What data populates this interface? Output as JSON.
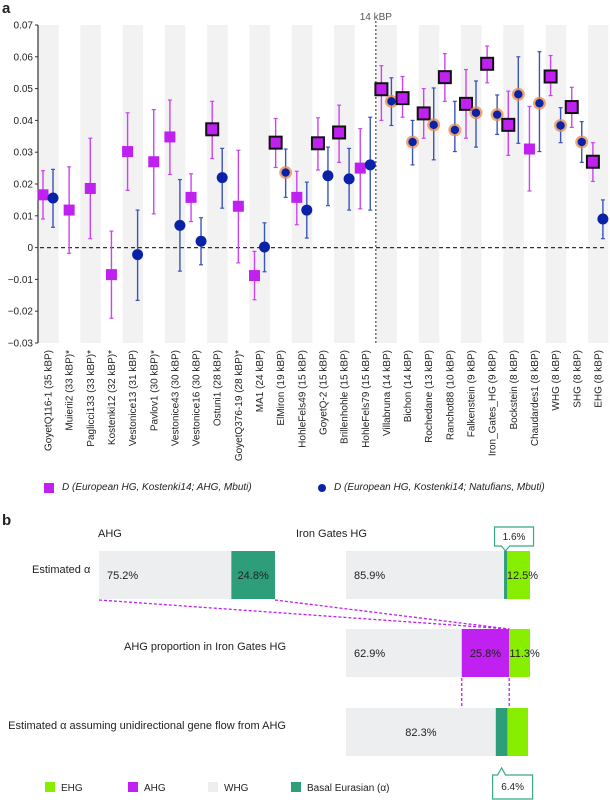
{
  "panel_a_label": "a",
  "panel_b_label": "b",
  "chart_data": [
    {
      "type": "scatter",
      "title": "",
      "xlabel": "",
      "ylabel": "",
      "ylim": [
        -0.03,
        0.07
      ],
      "yticks": [
        "0.07",
        "0.06",
        "0.05",
        "0.04",
        "0.03",
        "0.02",
        "0.01",
        "0",
        "-0.01",
        "-0.02",
        "-0.03"
      ],
      "ytick_values": [
        0.07,
        0.06,
        0.05,
        0.04,
        0.03,
        0.02,
        0.01,
        0,
        -0.01,
        -0.02,
        -0.03
      ],
      "reference_line": {
        "y": 0,
        "style": "dashed"
      },
      "vertical_marker": {
        "label": "14 kBP",
        "between": [
          "HohleFels79 (15 kBP)",
          "Villabruna (14 kBP)"
        ],
        "style": "dotted"
      },
      "categories": [
        "GoyetQ116-1 (35 kBP)",
        "Muierii2 (33 kBP)*",
        "Paglicci133 (33 kBP)*",
        "Kostenki12 (32 kBP)*",
        "Vestonice13 (31 kBP)",
        "Pavlov1 (30 kBP)*",
        "Vestonice43 (30 kBP)",
        "Vestonice16 (30 kBP)",
        "Ostuni1 (28 kBP)",
        "GoyetQ376-19 (28 kBP)*",
        "MA1 (24 kBP)",
        "ElMiron (19 kBP)",
        "HohleFels49 (15 kBP)",
        "GoyetQ-2 (15 kBP)",
        "Brillenhohle (15 kBP)",
        "HohleFels79 (15 kBP)",
        "Villabruna (14 kBP)",
        "Bichon (14 kBP)",
        "Rochedane (13 kBP)",
        "Ranchot88 (10 kBP)",
        "Falkenstein (9 kBP)",
        "Iron_Gates_HG (9 kBP)",
        "Bockstein (8 kBP)",
        "Chaudardes1 (8 kBP)",
        "WHG (8 kBP)",
        "SHG (8 kBP)",
        "EHG (8 kBP)"
      ],
      "series": [
        {
          "name": "D (European HG, Kostenki14; AHG, Mbuti)",
          "marker": "square",
          "color": "#c020f0",
          "values": [
            0.0166,
            0.0118,
            0.0186,
            -0.0085,
            0.0302,
            0.027,
            0.0348,
            0.0158,
            0.0372,
            0.013,
            -0.0088,
            0.033,
            0.0158,
            0.0328,
            0.0362,
            0.025,
            0.0498,
            0.047,
            0.0422,
            0.0536,
            0.0452,
            0.0578,
            0.0386,
            0.031,
            0.0538,
            0.0442,
            0.027
          ],
          "err_low": [
            0.009,
            -0.0018,
            0.0028,
            -0.0222,
            0.018,
            0.0106,
            0.023,
            0.0082,
            0.028,
            -0.0048,
            -0.0164,
            0.0252,
            0.0072,
            0.0244,
            0.0268,
            0.0122,
            0.04,
            0.041,
            0.0344,
            0.046,
            0.0344,
            0.0518,
            0.029,
            0.0178,
            0.0478,
            0.0378,
            0.0208
          ],
          "err_high": [
            0.0242,
            0.0254,
            0.0344,
            0.0052,
            0.0424,
            0.0434,
            0.0464,
            0.0232,
            0.046,
            0.0306,
            -0.0012,
            0.0406,
            0.024,
            0.0408,
            0.0448,
            0.0374,
            0.0572,
            0.0538,
            0.05,
            0.061,
            0.056,
            0.0634,
            0.0492,
            0.0444,
            0.0604,
            0.0504,
            0.033
          ],
          "highlighted": [
            false,
            false,
            false,
            false,
            false,
            false,
            false,
            false,
            true,
            false,
            false,
            true,
            false,
            true,
            true,
            false,
            true,
            true,
            true,
            true,
            true,
            true,
            true,
            false,
            true,
            true,
            true
          ]
        },
        {
          "name": "D (European HG, Kostenki14; Natufians, Mbuti)",
          "marker": "circle",
          "color": "#0a22a8",
          "values": [
            0.0156,
            null,
            null,
            null,
            -0.0022,
            null,
            0.007,
            0.002,
            0.022,
            null,
            0.0002,
            0.0236,
            0.0118,
            0.0226,
            0.0216,
            0.026,
            0.046,
            0.0332,
            0.0386,
            0.037,
            0.0424,
            0.0418,
            0.0482,
            0.0454,
            0.0384,
            0.0332,
            0.009
          ],
          "err_low": [
            0.0064,
            null,
            null,
            null,
            -0.0166,
            null,
            -0.0074,
            -0.0054,
            0.0124,
            null,
            -0.0076,
            0.0158,
            0.003,
            0.0132,
            0.0118,
            0.0118,
            0.0384,
            0.026,
            0.0276,
            0.0302,
            0.0316,
            0.0356,
            0.0328,
            0.0302,
            0.033,
            0.0268,
            0.0028
          ],
          "err_high": [
            0.0246,
            null,
            null,
            null,
            0.0118,
            null,
            0.0214,
            0.0094,
            0.0312,
            null,
            0.0078,
            0.031,
            0.0206,
            0.0316,
            0.0312,
            0.041,
            0.0534,
            0.04,
            0.0502,
            0.046,
            0.0524,
            0.048,
            0.06,
            0.0616,
            0.044,
            0.0396,
            0.015
          ],
          "highlighted": [
            false,
            false,
            false,
            false,
            false,
            false,
            false,
            false,
            false,
            false,
            false,
            true,
            false,
            false,
            false,
            false,
            true,
            true,
            true,
            true,
            true,
            true,
            true,
            true,
            true,
            true,
            false
          ]
        }
      ],
      "legend": [
        {
          "label": "D (European HG, Kostenki14; AHG, Mbuti)",
          "marker": "square"
        },
        {
          "label": "D (European HG, Kostenki14; Natufians, Mbuti)",
          "marker": "circle"
        }
      ],
      "legend_placement": "bottom"
    },
    {
      "type": "bar",
      "orientation": "horizontal-stacked",
      "columns": {
        "left": "AHG",
        "right": "Iron Gates HG"
      },
      "rows": [
        {
          "label": "Estimated α",
          "bars": [
            {
              "group": "AHG",
              "segments": [
                {
                  "component": "WHG",
                  "value": 75.2,
                  "label": "75.2%"
                },
                {
                  "component": "Basal Eurasian (α)",
                  "value": 24.8,
                  "label": "24.8%"
                }
              ]
            },
            {
              "group": "Iron Gates HG",
              "segments": [
                {
                  "component": "WHG",
                  "value": 85.9,
                  "label": "85.9%"
                },
                {
                  "component": "Basal Eurasian (α)",
                  "value": 1.6,
                  "label": "1.6%",
                  "callout": true
                },
                {
                  "component": "EHG",
                  "value": 12.5,
                  "label": "12.5%"
                }
              ]
            }
          ]
        },
        {
          "label": "AHG proportion in Iron Gates HG",
          "bars": [
            {
              "group": "Iron Gates HG",
              "segments": [
                {
                  "component": "WHG",
                  "value": 62.9,
                  "label": "62.9%"
                },
                {
                  "component": "AHG",
                  "value": 25.8,
                  "label": "25.8%"
                },
                {
                  "component": "EHG",
                  "value": 11.3,
                  "label": "11.3%"
                }
              ]
            }
          ]
        },
        {
          "label": "Estimated α assuming unidirectional gene flow from AHG",
          "bars": [
            {
              "group": "Iron Gates HG",
              "segments": [
                {
                  "component": "WHG",
                  "value": 82.3,
                  "label": "82.3%"
                },
                {
                  "component": "Basal Eurasian (α)",
                  "value": 6.4,
                  "label": "6.4%",
                  "callout": true
                },
                {
                  "component": "EHG",
                  "value": 11.3,
                  "label": ""
                }
              ]
            }
          ]
        }
      ],
      "legend": [
        {
          "label": "EHG",
          "color": "#88ee00"
        },
        {
          "label": "AHG",
          "color": "#c020f0"
        },
        {
          "label": "WHG",
          "color": "#eceeef"
        },
        {
          "label": "Basal Eurasian (α)",
          "color": "#2e9e7a"
        }
      ]
    }
  ],
  "colors": {
    "square": "#c020f0",
    "square_err": "#cc44f0",
    "circle": "#0a22a8",
    "circle_err": "#3a54b8",
    "highlight_ring": "#e88a4a",
    "stripe": "#f2f2f2",
    "ehg": "#88ee00",
    "ahg": "#c020f0",
    "whg": "#eceeef",
    "basal": "#2e9e7a",
    "callout_border": "#3aa88a"
  }
}
